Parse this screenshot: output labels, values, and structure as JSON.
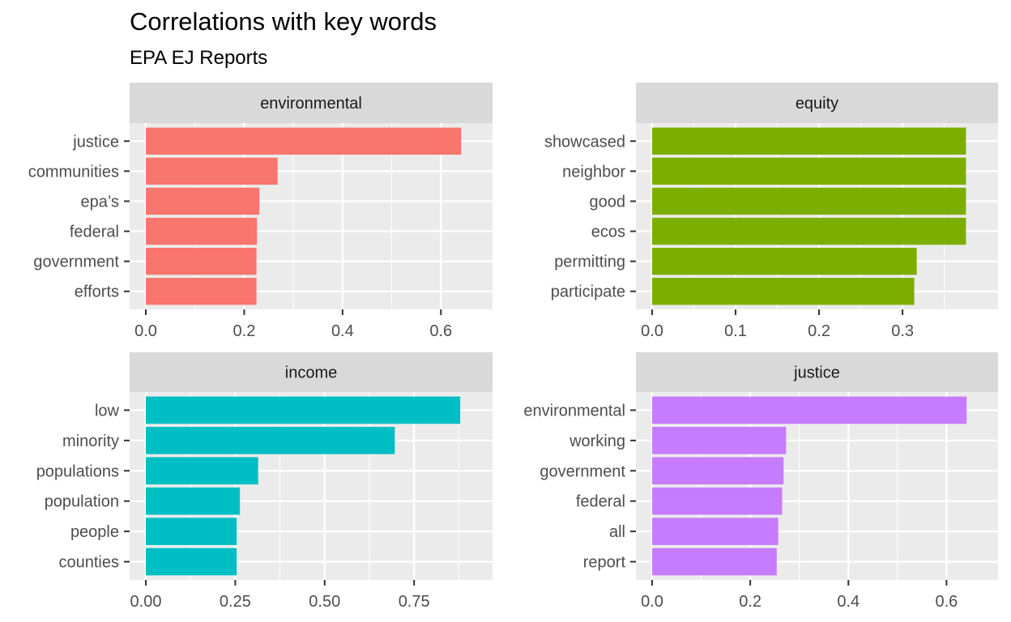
{
  "chart_data": {
    "title": "Correlations with key words",
    "subtitle": "EPA EJ Reports",
    "type": "bar",
    "orientation": "horizontal",
    "grid": true,
    "facets": [
      {
        "name": "environmental",
        "color": "#F8766D",
        "xlim": [
          0,
          0.672
        ],
        "ticks": [
          0.0,
          0.2,
          0.4,
          0.6
        ],
        "tick_labels": [
          "0.0",
          "0.2",
          "0.4",
          "0.6"
        ],
        "categories": [
          "justice",
          "communities",
          "epa’s",
          "federal",
          "government",
          "efforts"
        ],
        "values": [
          0.641,
          0.268,
          0.231,
          0.226,
          0.225,
          0.225
        ]
      },
      {
        "name": "equity",
        "color": "#7CAE00",
        "xlim": [
          0,
          0.395
        ],
        "ticks": [
          0.0,
          0.1,
          0.2,
          0.3
        ],
        "tick_labels": [
          "0.0",
          "0.1",
          "0.2",
          "0.3"
        ],
        "categories": [
          "showcased",
          "neighbor",
          "good",
          "ecos",
          "permitting",
          "participate"
        ],
        "values": [
          0.376,
          0.376,
          0.376,
          0.376,
          0.317,
          0.314
        ]
      },
      {
        "name": "income",
        "color": "#00BFC4",
        "xlim": [
          0,
          0.924
        ],
        "ticks": [
          0.0,
          0.25,
          0.5,
          0.75
        ],
        "tick_labels": [
          "0.00",
          "0.25",
          "0.50",
          "0.75"
        ],
        "categories": [
          "low",
          "minority",
          "populations",
          "population",
          "people",
          "counties"
        ],
        "values": [
          0.879,
          0.696,
          0.314,
          0.263,
          0.254,
          0.254
        ]
      },
      {
        "name": "justice",
        "color": "#C77CFF",
        "xlim": [
          0,
          0.672
        ],
        "ticks": [
          0.0,
          0.2,
          0.4,
          0.6
        ],
        "tick_labels": [
          "0.0",
          "0.2",
          "0.4",
          "0.6"
        ],
        "categories": [
          "environmental",
          "working",
          "government",
          "federal",
          "all",
          "report"
        ],
        "values": [
          0.641,
          0.273,
          0.268,
          0.265,
          0.257,
          0.254
        ]
      }
    ]
  }
}
